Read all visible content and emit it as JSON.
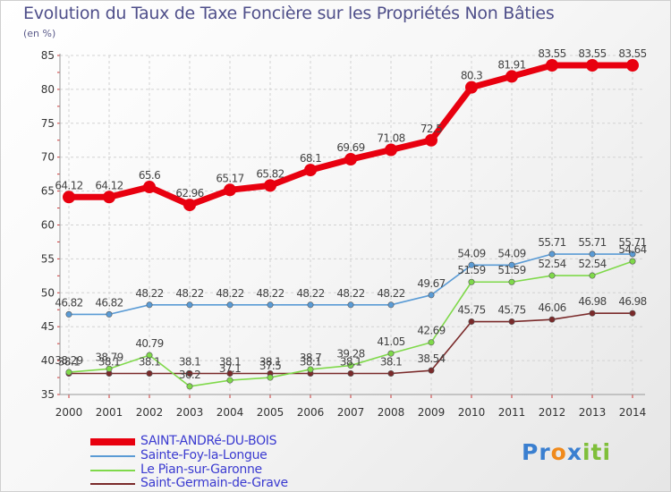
{
  "chart_data": {
    "type": "line",
    "title": "Evolution du Taux de Taxe Foncière sur les Propriétés Non Bâties",
    "ylabel": "(en %)",
    "xlabel": "",
    "ylim": [
      35,
      85
    ],
    "yticks": [
      "35",
      "40",
      "45",
      "50",
      "55",
      "60",
      "65",
      "70",
      "75",
      "80",
      "85"
    ],
    "categories": [
      "2000",
      "2001",
      "2002",
      "2003",
      "2004",
      "2005",
      "2006",
      "2007",
      "2008",
      "2009",
      "2010",
      "2011",
      "2012",
      "2013",
      "2014"
    ],
    "grid": true,
    "legend_position": "bottom-left",
    "series": [
      {
        "name": "SAINT-ANDRé-DU-BOIS",
        "color": "#e8000f",
        "values": [
          64.12,
          64.12,
          65.6,
          62.96,
          65.17,
          65.82,
          68.1,
          69.69,
          71.08,
          72.5,
          80.3,
          81.91,
          83.55,
          83.55,
          83.55
        ],
        "labels": [
          "64.12",
          "64.12",
          "65.6",
          "62.96",
          "65.17",
          "65.82",
          "68.1",
          "69.69",
          "71.08",
          "72.5",
          "80.3",
          "81.91",
          "83.55",
          "83.55",
          "83.55"
        ]
      },
      {
        "name": "Sainte-Foy-la-Longue",
        "color": "#5a9bd5",
        "values": [
          46.82,
          46.82,
          48.22,
          48.22,
          48.22,
          48.22,
          48.22,
          48.22,
          48.22,
          49.67,
          54.09,
          54.09,
          55.71,
          55.71,
          55.71
        ],
        "labels": [
          "46.82",
          "46.82",
          "48.22",
          "48.22",
          "48.22",
          "48.22",
          "48.22",
          "48.22",
          "48.22",
          "49.67",
          "54.09",
          "54.09",
          "55.71",
          "55.71",
          "55.71"
        ]
      },
      {
        "name": "Le Pian-sur-Garonne",
        "color": "#7fd94a",
        "values": [
          38.29,
          38.79,
          40.79,
          36.2,
          37.1,
          37.5,
          38.7,
          39.28,
          41.05,
          42.69,
          51.59,
          51.59,
          52.54,
          52.54,
          54.64
        ],
        "labels": [
          "38.29",
          "38.79",
          "40.79",
          "36.2",
          "37.1",
          "37.5",
          "38.7",
          "39.28",
          "41.05",
          "42.69",
          "51.59",
          "51.59",
          "52.54",
          "52.54",
          "54.64"
        ]
      },
      {
        "name": "Saint-Germain-de-Grave",
        "color": "#7a2a2a",
        "values": [
          38.1,
          38.1,
          38.1,
          38.1,
          38.1,
          38.1,
          38.1,
          38.1,
          38.1,
          38.54,
          45.75,
          45.75,
          46.06,
          46.98,
          46.98
        ],
        "labels": [
          "38.1",
          "38.1",
          "38.1",
          "38.1",
          "38.1",
          "38.1",
          "38.1",
          "38.1",
          "38.1",
          "38.54",
          "45.75",
          "45.75",
          "46.06",
          "46.98",
          "46.98"
        ]
      }
    ]
  },
  "logo": {
    "part1": "Pr",
    "part2": "o",
    "part3": "x",
    "part4": "iti"
  }
}
